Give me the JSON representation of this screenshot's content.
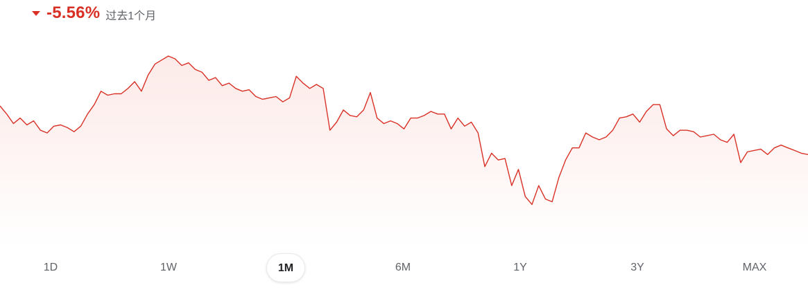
{
  "header": {
    "change_icon": "down-triangle-icon",
    "change": "-5.56%",
    "period": "过去1个月"
  },
  "colors": {
    "line": "#d93025",
    "fill_top": "#fce8e6",
    "fill_bottom": "#ffffff",
    "active_text": "#202124",
    "inactive_text": "#5f6368"
  },
  "ranges": {
    "active": "1M",
    "items": [
      {
        "label": "1D"
      },
      {
        "label": "1W"
      },
      {
        "label": "1M"
      },
      {
        "label": "6M"
      },
      {
        "label": "1Y"
      },
      {
        "label": "3Y"
      },
      {
        "label": "MAX"
      }
    ]
  },
  "chart_data": {
    "type": "area",
    "title": "",
    "xlabel": "",
    "ylabel": "",
    "ylim": [
      0,
      1
    ],
    "grid": false,
    "legend": "none",
    "series": [
      {
        "values": [
          0.692,
          0.642,
          0.583,
          0.617,
          0.575,
          0.6,
          0.542,
          0.525,
          0.567,
          0.575,
          0.558,
          0.533,
          0.567,
          0.642,
          0.7,
          0.783,
          0.758,
          0.767,
          0.767,
          0.8,
          0.842,
          0.783,
          0.883,
          0.95,
          0.975,
          1.0,
          0.983,
          0.942,
          0.958,
          0.917,
          0.9,
          0.85,
          0.867,
          0.817,
          0.833,
          0.8,
          0.783,
          0.792,
          0.75,
          0.733,
          0.742,
          0.75,
          0.717,
          0.742,
          0.875,
          0.833,
          0.8,
          0.825,
          0.8,
          0.542,
          0.592,
          0.667,
          0.633,
          0.625,
          0.667,
          0.775,
          0.617,
          0.583,
          0.6,
          0.583,
          0.55,
          0.617,
          0.617,
          0.633,
          0.658,
          0.642,
          0.642,
          0.55,
          0.617,
          0.567,
          0.592,
          0.525,
          0.317,
          0.4,
          0.358,
          0.367,
          0.2,
          0.3,
          0.133,
          0.083,
          0.2,
          0.117,
          0.1,
          0.25,
          0.358,
          0.433,
          0.433,
          0.525,
          0.5,
          0.483,
          0.5,
          0.542,
          0.617,
          0.625,
          0.642,
          0.592,
          0.658,
          0.7,
          0.7,
          0.55,
          0.508,
          0.542,
          0.542,
          0.533,
          0.5,
          0.508,
          0.517,
          0.483,
          0.467,
          0.517,
          0.342,
          0.408,
          0.417,
          0.425,
          0.392,
          0.433,
          0.45,
          0.433,
          0.417,
          0.4,
          0.392
        ]
      }
    ]
  }
}
